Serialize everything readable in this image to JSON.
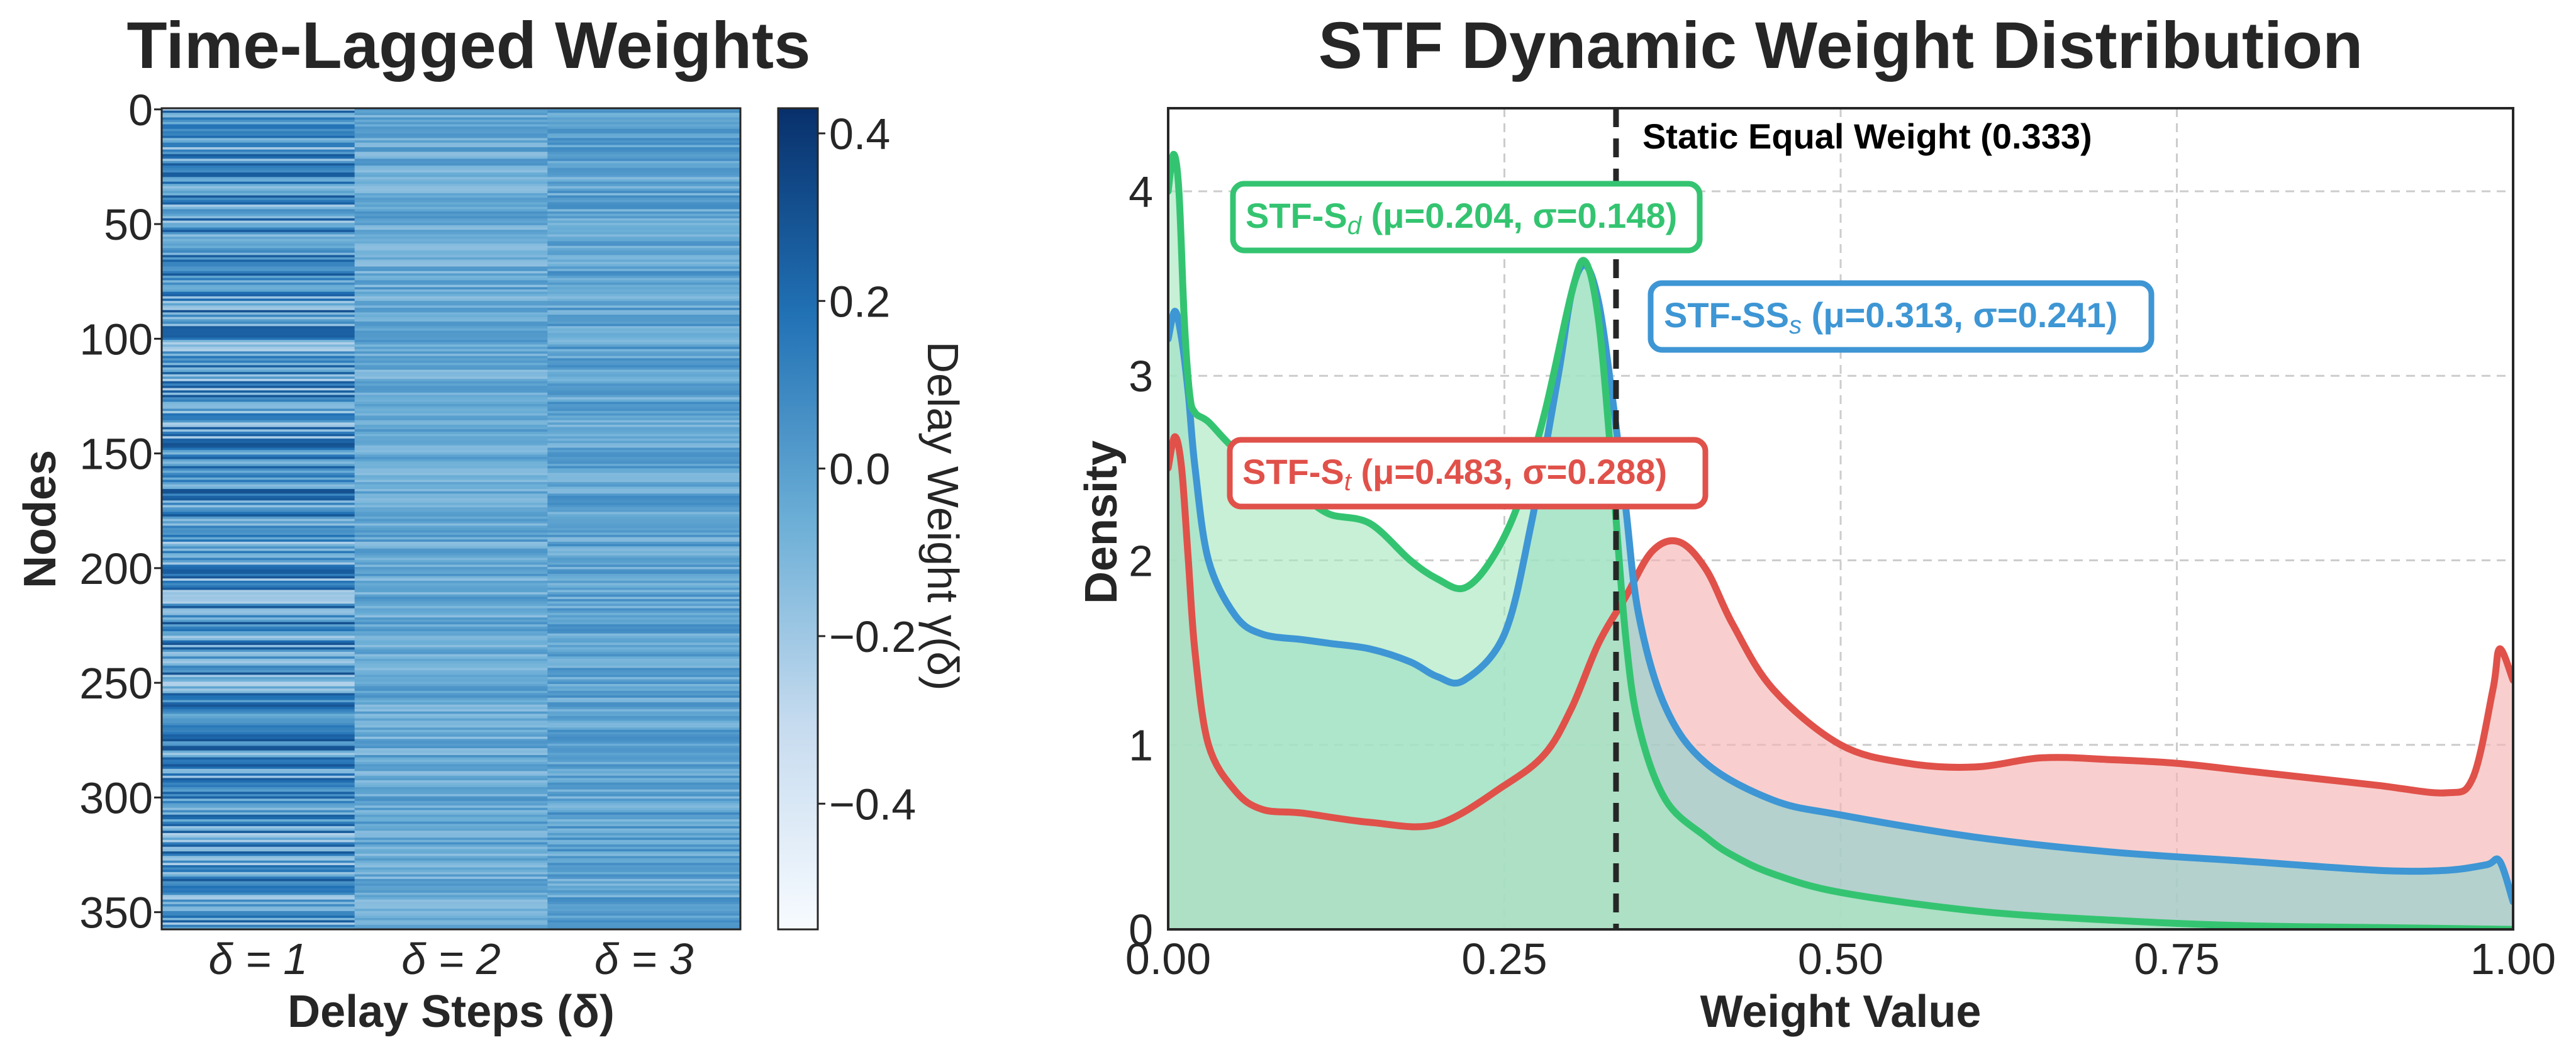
{
  "chart_data": [
    {
      "type": "heatmap",
      "title": "Time-Lagged Weights",
      "xlabel": "Delay Steps (δ)",
      "ylabel": "Nodes",
      "x_categories": [
        "δ = 1",
        "δ = 2",
        "δ = 3"
      ],
      "y_ticks": [
        "0",
        "50",
        "100",
        "150",
        "200",
        "250",
        "300",
        "350"
      ],
      "y_range": [
        0,
        358
      ],
      "colorbar": {
        "label": "Delay Weight γ(δ)",
        "range": [
          -0.55,
          0.43
        ],
        "ticks": [
          "0.4",
          "0.2",
          "0.0",
          "−0.2",
          "−0.4"
        ],
        "tick_values": [
          0.4,
          0.2,
          0.0,
          -0.2,
          -0.4
        ],
        "low_color": "#f7fbff",
        "high_color": "#08306b"
      },
      "column_means": [
        0.03,
        -0.05,
        -0.02
      ]
    },
    {
      "type": "area",
      "title": "STF Dynamic Weight Distribution",
      "xlabel": "Weight Value",
      "ylabel": "Density",
      "xlim": [
        0,
        1
      ],
      "ylim": [
        0,
        4.45
      ],
      "x_ticks": [
        "0.00",
        "0.25",
        "0.50",
        "0.75",
        "1.00"
      ],
      "x_tick_values": [
        0,
        0.25,
        0.5,
        0.75,
        1.0
      ],
      "y_ticks": [
        "0",
        "1",
        "2",
        "3",
        "4"
      ],
      "y_tick_values": [
        0,
        1,
        2,
        3,
        4
      ],
      "grid": true,
      "reference_line": {
        "x": 0.333,
        "label": "Static Equal Weight (0.333)"
      },
      "series": [
        {
          "name": "STF-St",
          "color": "#e0514a",
          "fill": "#f4b6b3",
          "annotation": {
            "prefix": "STF-S",
            "subscript": "t",
            "stats": " (μ=0.483, σ=0.288)"
          },
          "x": [
            0,
            0.005,
            0.01,
            0.015,
            0.02,
            0.03,
            0.05,
            0.07,
            0.1,
            0.15,
            0.2,
            0.25,
            0.28,
            0.3,
            0.32,
            0.34,
            0.36,
            0.38,
            0.4,
            0.42,
            0.45,
            0.5,
            0.55,
            0.6,
            0.65,
            0.7,
            0.75,
            0.8,
            0.85,
            0.9,
            0.95,
            0.97,
            0.985,
            0.99,
            1.0
          ],
          "y": [
            2.5,
            2.67,
            2.5,
            2.0,
            1.5,
            1.0,
            0.75,
            0.65,
            0.63,
            0.58,
            0.57,
            0.78,
            0.95,
            1.2,
            1.55,
            1.8,
            2.05,
            2.1,
            1.95,
            1.65,
            1.3,
            1.0,
            0.9,
            0.88,
            0.93,
            0.92,
            0.9,
            0.86,
            0.82,
            0.78,
            0.74,
            0.82,
            1.3,
            1.52,
            1.35
          ]
        },
        {
          "name": "STF-SSs",
          "color": "#3e96d4",
          "fill": "#8fd3cc",
          "annotation": {
            "prefix": "STF-SS",
            "subscript": "s",
            "stats": " (μ=0.313, σ=0.241)"
          },
          "x": [
            0,
            0.005,
            0.01,
            0.015,
            0.02,
            0.03,
            0.05,
            0.07,
            0.1,
            0.12,
            0.15,
            0.18,
            0.2,
            0.22,
            0.25,
            0.27,
            0.29,
            0.3,
            0.31,
            0.32,
            0.33,
            0.34,
            0.35,
            0.37,
            0.4,
            0.45,
            0.5,
            0.6,
            0.7,
            0.8,
            0.9,
            0.95,
            0.98,
            0.99,
            1.0
          ],
          "y": [
            3.2,
            3.35,
            3.2,
            2.9,
            2.5,
            2.0,
            1.7,
            1.6,
            1.57,
            1.55,
            1.52,
            1.45,
            1.37,
            1.35,
            1.6,
            2.2,
            3.0,
            3.45,
            3.6,
            3.4,
            2.9,
            2.3,
            1.7,
            1.2,
            0.9,
            0.7,
            0.62,
            0.5,
            0.42,
            0.37,
            0.32,
            0.32,
            0.35,
            0.37,
            0.15
          ]
        },
        {
          "name": "STF-Sd",
          "color": "#34c471",
          "fill": "#a9e8c0",
          "annotation": {
            "prefix": "STF-S",
            "subscript": "d",
            "stats": " (μ=0.204, σ=0.148)"
          },
          "x": [
            0,
            0.004,
            0.008,
            0.012,
            0.016,
            0.02,
            0.03,
            0.05,
            0.08,
            0.1,
            0.12,
            0.15,
            0.18,
            0.2,
            0.22,
            0.24,
            0.26,
            0.28,
            0.3,
            0.31,
            0.32,
            0.33,
            0.34,
            0.35,
            0.37,
            0.4,
            0.42,
            0.45,
            0.5,
            0.6,
            0.7,
            0.8,
            0.9,
            1.0
          ],
          "y": [
            4.0,
            4.2,
            4.0,
            3.3,
            2.9,
            2.8,
            2.75,
            2.6,
            2.45,
            2.35,
            2.25,
            2.2,
            2.0,
            1.9,
            1.85,
            2.0,
            2.3,
            2.8,
            3.45,
            3.62,
            3.3,
            2.5,
            1.6,
            1.1,
            0.7,
            0.5,
            0.4,
            0.3,
            0.2,
            0.1,
            0.05,
            0.02,
            0.01,
            0.0
          ]
        }
      ]
    }
  ]
}
